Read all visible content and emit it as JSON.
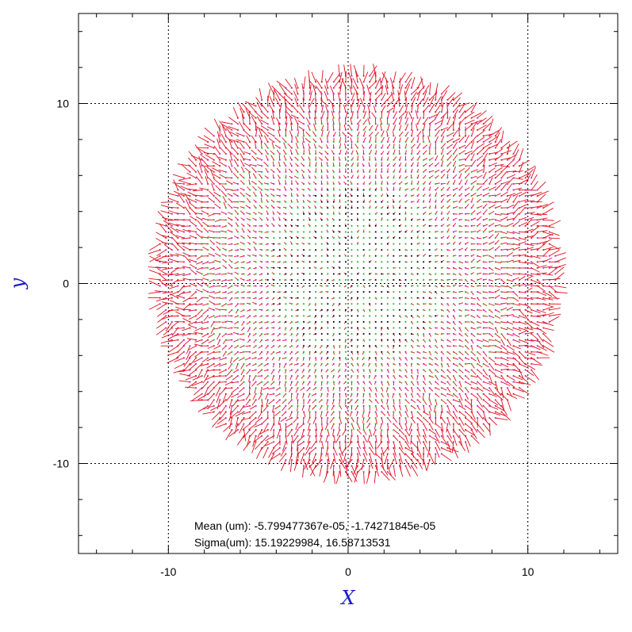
{
  "chart_data": {
    "type": "scatter",
    "subtype": "vector-field",
    "title": "",
    "xlabel": "X",
    "ylabel": "y",
    "xlim": [
      -15,
      15
    ],
    "ylim": [
      -15,
      15
    ],
    "xticks": [
      -10,
      0,
      10
    ],
    "yticks": [
      -10,
      0,
      10
    ],
    "xtick_labels": [
      "-10",
      "0",
      "10"
    ],
    "ytick_labels": [
      "-10",
      "0",
      "10"
    ],
    "grid": true,
    "field": {
      "center": [
        0.5,
        0.5
      ],
      "radius": 11.1,
      "grid_spacing": 0.3333,
      "vector_pattern": "radial distortion, magnitude increasing toward edge"
    },
    "annotations": {
      "mean_line": "Mean (um): -5.799477367e-05, -1.74271845e-05",
      "sigma_line": "Sigma(um): 15.19229984, 16.58713531"
    },
    "colors": {
      "axis_title": "#1a1acc",
      "vectors": "#e0101c",
      "markers_inner": "#20b020",
      "markers_outer": "#c020c0",
      "center_dots": "#000000",
      "grid": "#000000",
      "frame": "#000000"
    }
  }
}
